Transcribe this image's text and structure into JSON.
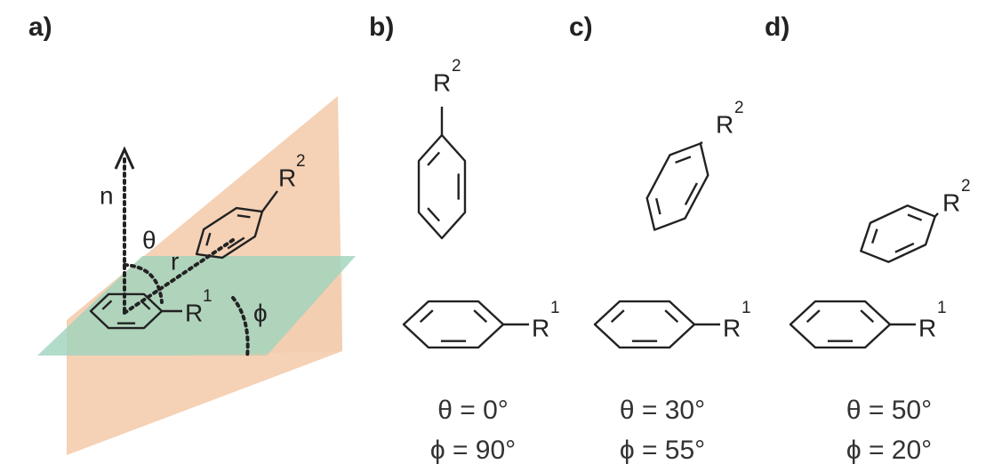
{
  "panels": [
    {
      "label": "a)",
      "normal": "n",
      "theta": "θ",
      "distance": "r",
      "phi": "ϕ",
      "substituent_1": "R",
      "substituent_1_index": "1",
      "substituent_2": "R",
      "substituent_2_index": "2"
    },
    {
      "label": "b)",
      "substituent_1": "R",
      "substituent_1_index": "1",
      "substituent_2": "R",
      "substituent_2_index": "2",
      "theta": "θ = 0°",
      "phi": "ϕ = 90°"
    },
    {
      "label": "c)",
      "substituent_1": "R",
      "substituent_1_index": "1",
      "substituent_2": "R",
      "substituent_2_index": "2",
      "theta": "θ = 30°",
      "phi": "ϕ = 55°"
    },
    {
      "label": "d)",
      "substituent_1": "R",
      "substituent_1_index": "1",
      "substituent_2": "R",
      "substituent_2_index": "2",
      "theta": "θ = 50°",
      "phi": "ϕ = 20°"
    }
  ]
}
